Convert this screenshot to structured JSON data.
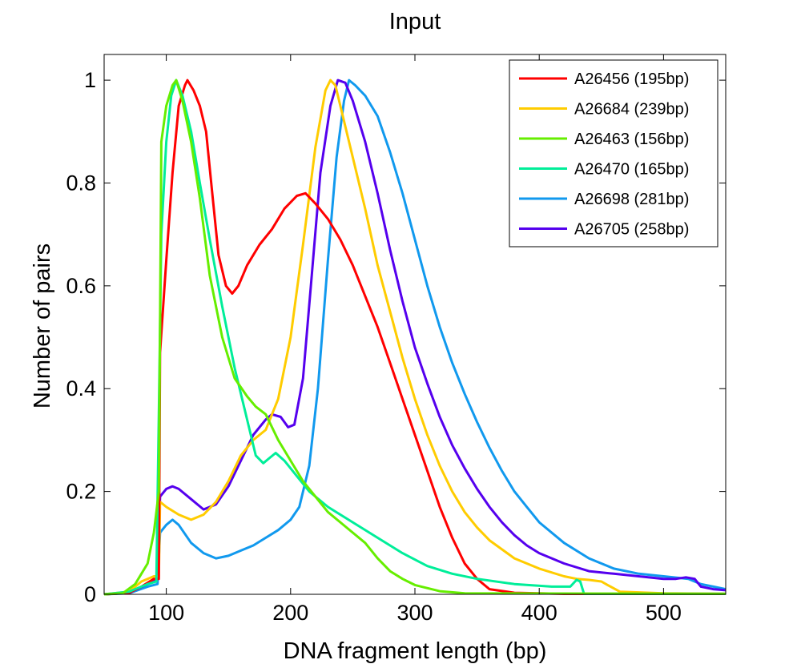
{
  "chart_data": {
    "type": "line",
    "title": "Input",
    "xlabel": "DNA fragment length (bp)",
    "ylabel": "Number of pairs",
    "xlim": [
      50,
      550
    ],
    "ylim": [
      0,
      1.05
    ],
    "xticks": [
      100,
      200,
      300,
      400,
      500
    ],
    "yticks": [
      0,
      0.2,
      0.4,
      0.6,
      0.8,
      1
    ],
    "ytick_labels": [
      "0",
      "0.2",
      "0.4",
      "0.6",
      "0.8",
      "1"
    ],
    "grid": false,
    "legend_position": "top-right",
    "series": [
      {
        "name": "A26456 (195bp)",
        "color": "#ff0000",
        "points": [
          [
            50,
            0
          ],
          [
            70,
            0.003
          ],
          [
            80,
            0.015
          ],
          [
            90,
            0.03
          ],
          [
            94,
            0.03
          ],
          [
            95,
            0.47
          ],
          [
            100,
            0.65
          ],
          [
            105,
            0.82
          ],
          [
            110,
            0.95
          ],
          [
            115,
            0.99
          ],
          [
            117,
            1.0
          ],
          [
            122,
            0.98
          ],
          [
            127,
            0.95
          ],
          [
            132,
            0.9
          ],
          [
            137,
            0.78
          ],
          [
            142,
            0.66
          ],
          [
            148,
            0.6
          ],
          [
            153,
            0.585
          ],
          [
            158,
            0.6
          ],
          [
            165,
            0.64
          ],
          [
            175,
            0.68
          ],
          [
            185,
            0.71
          ],
          [
            195,
            0.75
          ],
          [
            205,
            0.775
          ],
          [
            212,
            0.78
          ],
          [
            220,
            0.76
          ],
          [
            230,
            0.73
          ],
          [
            240,
            0.69
          ],
          [
            250,
            0.64
          ],
          [
            260,
            0.58
          ],
          [
            270,
            0.52
          ],
          [
            280,
            0.45
          ],
          [
            290,
            0.38
          ],
          [
            300,
            0.31
          ],
          [
            310,
            0.24
          ],
          [
            320,
            0.17
          ],
          [
            330,
            0.11
          ],
          [
            340,
            0.06
          ],
          [
            350,
            0.03
          ],
          [
            360,
            0.01
          ],
          [
            380,
            0.003
          ],
          [
            420,
            0.001
          ],
          [
            550,
            0.001
          ]
        ]
      },
      {
        "name": "A26684 (239bp)",
        "color": "#ffcc00",
        "points": [
          [
            50,
            0
          ],
          [
            70,
            0.005
          ],
          [
            80,
            0.025
          ],
          [
            90,
            0.035
          ],
          [
            94,
            0.035
          ],
          [
            95,
            0.18
          ],
          [
            100,
            0.17
          ],
          [
            110,
            0.155
          ],
          [
            120,
            0.145
          ],
          [
            130,
            0.155
          ],
          [
            140,
            0.18
          ],
          [
            150,
            0.22
          ],
          [
            160,
            0.27
          ],
          [
            170,
            0.3
          ],
          [
            180,
            0.32
          ],
          [
            190,
            0.38
          ],
          [
            200,
            0.5
          ],
          [
            210,
            0.68
          ],
          [
            220,
            0.87
          ],
          [
            228,
            0.98
          ],
          [
            232,
            1.0
          ],
          [
            236,
            0.99
          ],
          [
            242,
            0.93
          ],
          [
            250,
            0.85
          ],
          [
            260,
            0.75
          ],
          [
            270,
            0.64
          ],
          [
            280,
            0.55
          ],
          [
            290,
            0.46
          ],
          [
            300,
            0.38
          ],
          [
            310,
            0.31
          ],
          [
            320,
            0.25
          ],
          [
            330,
            0.2
          ],
          [
            340,
            0.16
          ],
          [
            350,
            0.13
          ],
          [
            360,
            0.105
          ],
          [
            380,
            0.07
          ],
          [
            400,
            0.05
          ],
          [
            420,
            0.035
          ],
          [
            430,
            0.03
          ],
          [
            440,
            0.028
          ],
          [
            450,
            0.025
          ],
          [
            455,
            0.018
          ],
          [
            465,
            0.005
          ],
          [
            500,
            0.002
          ],
          [
            550,
            0.001
          ]
        ]
      },
      {
        "name": "A26463 (156bp)",
        "color": "#66ee00",
        "points": [
          [
            50,
            0
          ],
          [
            65,
            0.002
          ],
          [
            75,
            0.02
          ],
          [
            85,
            0.06
          ],
          [
            90,
            0.12
          ],
          [
            94,
            0.2
          ],
          [
            96,
            0.88
          ],
          [
            100,
            0.95
          ],
          [
            105,
            0.99
          ],
          [
            108,
            1.0
          ],
          [
            113,
            0.96
          ],
          [
            120,
            0.88
          ],
          [
            127,
            0.77
          ],
          [
            135,
            0.62
          ],
          [
            145,
            0.5
          ],
          [
            155,
            0.42
          ],
          [
            165,
            0.385
          ],
          [
            172,
            0.365
          ],
          [
            180,
            0.35
          ],
          [
            190,
            0.3
          ],
          [
            200,
            0.26
          ],
          [
            210,
            0.22
          ],
          [
            220,
            0.19
          ],
          [
            230,
            0.16
          ],
          [
            240,
            0.14
          ],
          [
            250,
            0.12
          ],
          [
            260,
            0.1
          ],
          [
            270,
            0.07
          ],
          [
            280,
            0.045
          ],
          [
            290,
            0.03
          ],
          [
            300,
            0.018
          ],
          [
            320,
            0.006
          ],
          [
            340,
            0.002
          ],
          [
            550,
            0.001
          ]
        ]
      },
      {
        "name": "A26470 (165bp)",
        "color": "#00ee99",
        "points": [
          [
            50,
            0
          ],
          [
            70,
            0.005
          ],
          [
            85,
            0.02
          ],
          [
            92,
            0.025
          ],
          [
            94,
            0.35
          ],
          [
            96,
            0.7
          ],
          [
            100,
            0.88
          ],
          [
            104,
            0.97
          ],
          [
            108,
            1.0
          ],
          [
            113,
            0.97
          ],
          [
            120,
            0.9
          ],
          [
            127,
            0.8
          ],
          [
            135,
            0.69
          ],
          [
            145,
            0.56
          ],
          [
            155,
            0.44
          ],
          [
            165,
            0.34
          ],
          [
            172,
            0.27
          ],
          [
            178,
            0.255
          ],
          [
            183,
            0.265
          ],
          [
            188,
            0.275
          ],
          [
            195,
            0.26
          ],
          [
            205,
            0.23
          ],
          [
            215,
            0.2
          ],
          [
            230,
            0.17
          ],
          [
            250,
            0.14
          ],
          [
            270,
            0.11
          ],
          [
            290,
            0.08
          ],
          [
            310,
            0.055
          ],
          [
            330,
            0.04
          ],
          [
            350,
            0.03
          ],
          [
            380,
            0.02
          ],
          [
            410,
            0.015
          ],
          [
            425,
            0.015
          ],
          [
            430,
            0.028
          ],
          [
            433,
            0.025
          ],
          [
            436,
            0.001
          ],
          [
            550,
            0.001
          ]
        ]
      },
      {
        "name": "A26698 (281bp)",
        "color": "#1199ee",
        "points": [
          [
            50,
            0
          ],
          [
            70,
            0.002
          ],
          [
            85,
            0.015
          ],
          [
            93,
            0.02
          ],
          [
            95,
            0.12
          ],
          [
            100,
            0.135
          ],
          [
            105,
            0.145
          ],
          [
            110,
            0.135
          ],
          [
            120,
            0.1
          ],
          [
            130,
            0.08
          ],
          [
            140,
            0.07
          ],
          [
            150,
            0.075
          ],
          [
            160,
            0.085
          ],
          [
            170,
            0.095
          ],
          [
            180,
            0.11
          ],
          [
            190,
            0.125
          ],
          [
            200,
            0.145
          ],
          [
            207,
            0.17
          ],
          [
            215,
            0.25
          ],
          [
            222,
            0.4
          ],
          [
            230,
            0.65
          ],
          [
            237,
            0.85
          ],
          [
            243,
            0.96
          ],
          [
            247,
            1.0
          ],
          [
            252,
            0.99
          ],
          [
            260,
            0.97
          ],
          [
            270,
            0.93
          ],
          [
            280,
            0.86
          ],
          [
            290,
            0.78
          ],
          [
            300,
            0.69
          ],
          [
            310,
            0.6
          ],
          [
            320,
            0.52
          ],
          [
            330,
            0.45
          ],
          [
            340,
            0.39
          ],
          [
            350,
            0.335
          ],
          [
            360,
            0.285
          ],
          [
            370,
            0.24
          ],
          [
            380,
            0.2
          ],
          [
            390,
            0.17
          ],
          [
            400,
            0.14
          ],
          [
            420,
            0.1
          ],
          [
            440,
            0.07
          ],
          [
            460,
            0.05
          ],
          [
            480,
            0.04
          ],
          [
            500,
            0.035
          ],
          [
            520,
            0.03
          ],
          [
            530,
            0.02
          ],
          [
            540,
            0.015
          ],
          [
            550,
            0.01
          ]
        ]
      },
      {
        "name": "A26705 (258bp)",
        "color": "#5500ee",
        "points": [
          [
            50,
            0
          ],
          [
            70,
            0.003
          ],
          [
            85,
            0.02
          ],
          [
            93,
            0.03
          ],
          [
            95,
            0.19
          ],
          [
            100,
            0.205
          ],
          [
            105,
            0.21
          ],
          [
            110,
            0.205
          ],
          [
            120,
            0.185
          ],
          [
            130,
            0.165
          ],
          [
            140,
            0.175
          ],
          [
            150,
            0.21
          ],
          [
            160,
            0.26
          ],
          [
            170,
            0.31
          ],
          [
            180,
            0.34
          ],
          [
            185,
            0.35
          ],
          [
            192,
            0.345
          ],
          [
            198,
            0.325
          ],
          [
            203,
            0.33
          ],
          [
            210,
            0.42
          ],
          [
            217,
            0.62
          ],
          [
            224,
            0.82
          ],
          [
            232,
            0.95
          ],
          [
            238,
            1.0
          ],
          [
            244,
            0.995
          ],
          [
            250,
            0.96
          ],
          [
            260,
            0.88
          ],
          [
            270,
            0.78
          ],
          [
            280,
            0.67
          ],
          [
            290,
            0.57
          ],
          [
            300,
            0.48
          ],
          [
            310,
            0.41
          ],
          [
            320,
            0.345
          ],
          [
            330,
            0.29
          ],
          [
            340,
            0.245
          ],
          [
            350,
            0.205
          ],
          [
            360,
            0.17
          ],
          [
            370,
            0.14
          ],
          [
            380,
            0.115
          ],
          [
            390,
            0.095
          ],
          [
            400,
            0.08
          ],
          [
            420,
            0.06
          ],
          [
            440,
            0.045
          ],
          [
            460,
            0.04
          ],
          [
            480,
            0.035
          ],
          [
            500,
            0.03
          ],
          [
            510,
            0.03
          ],
          [
            518,
            0.033
          ],
          [
            525,
            0.03
          ],
          [
            530,
            0.015
          ],
          [
            540,
            0.01
          ],
          [
            550,
            0.008
          ]
        ]
      }
    ]
  }
}
